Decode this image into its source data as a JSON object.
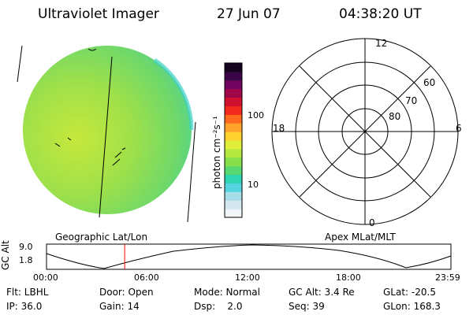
{
  "header": {
    "title": "Ultraviolet Imager",
    "date": "27 Jun 07",
    "time": "04:38:20 UT"
  },
  "colorbar": {
    "unit_label": "photon cm⁻²s⁻¹",
    "ticks": [
      {
        "label": "100",
        "value": 100
      },
      {
        "label": "10",
        "value": 10
      }
    ],
    "colors": [
      "#f2f6f8",
      "#d4e6ee",
      "#a6dde8",
      "#55d4e0",
      "#2fd4b0",
      "#58d870",
      "#86e04a",
      "#b4e83e",
      "#e0ee3a",
      "#ffd22e",
      "#ffa32a",
      "#ff6a1e",
      "#f22a1e",
      "#d0102e",
      "#a0064a",
      "#70045e",
      "#3a0648",
      "#140420"
    ]
  },
  "polar": {
    "mlt_labels": {
      "top": "12",
      "right": "6",
      "bottom": "0",
      "left": "18"
    },
    "lat_labels": [
      "60",
      "70",
      "80"
    ]
  },
  "timeline": {
    "left_label": "Geographic Lat/Lon",
    "right_label": "Apex MLat/MLT",
    "axis_label": "GC Alt",
    "y_ticks": [
      "9.0",
      "1.8"
    ],
    "x_ticks": [
      "00:00",
      "06:00",
      "12:00",
      "18:00",
      "23:59"
    ],
    "marker_time": "04:38:20",
    "marker_color": "#ff0000"
  },
  "info": {
    "flt": "Flt: LBHL",
    "ip": "IP: 36.0",
    "door": "Door: Open",
    "gain": "Gain: 14",
    "mode": "Mode: Normal",
    "dsp": "Dsp:    2.0",
    "gc_alt": "GC Alt: 3.4 Re",
    "seq": "Seq: 39",
    "glat": "GLat: -20.5",
    "glon": "GLon: 168.3"
  }
}
